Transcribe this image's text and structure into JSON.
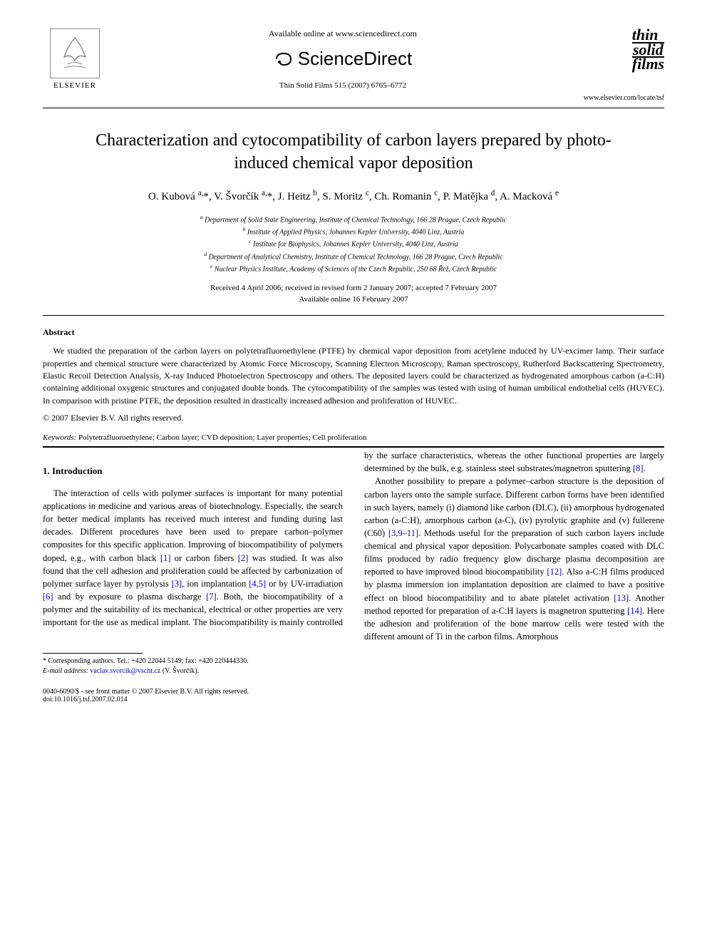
{
  "header": {
    "available_online": "Available online at www.sciencedirect.com",
    "sciencedirect": "ScienceDirect",
    "journal_ref": "Thin Solid Films 515 (2007) 6765–6772",
    "elsevier_label": "ELSEVIER",
    "tsf_line1": "thin",
    "tsf_line2": "solid",
    "tsf_line3": "films",
    "tsf_url": "www.elsevier.com/locate/tsf"
  },
  "title": "Characterization and cytocompatibility of carbon layers prepared by photo-induced chemical vapor deposition",
  "authors_html": "O. Kubová <sup>a,</sup>*, V. Švorčík <sup>a,</sup>*, J. Heitz <sup>b</sup>, S. Moritz <sup>c</sup>, Ch. Romanin <sup>c</sup>, P. Matějka <sup>d</sup>, A. Macková <sup>e</sup>",
  "affiliations": {
    "a": "Department of Solid State Engineering, Institute of Chemical Technology, 166 28 Prague, Czech Republic",
    "b": "Institute of Applied Physics, Johannes Kepler University, 4040 Linz, Austria",
    "c": "Institute for Biophysics, Johannes Kepler University, 4040 Linz, Austria",
    "d": "Department of Analytical Chemistry, Institute of Chemical Technology, 166 28 Prague, Czech Republic",
    "e": "Nuclear Physics Institute, Academy of Sciences of the Czech Republic, 250 68 Řež, Czech Republic"
  },
  "dates": {
    "line1": "Received 4 April 2006; received in revised form 2 January 2007; accepted 7 February 2007",
    "line2": "Available online 16 February 2007"
  },
  "abstract": {
    "heading": "Abstract",
    "body": "We studied the preparation of the carbon layers on polytetrafluoroethylene (PTFE) by chemical vapor deposition from acetylene induced by UV-excimer lamp. Their surface properties and chemical structure were characterized by Atomic Force Microscopy, Scanning Electron Microscopy, Raman spectroscopy, Rutherford Backscattering Spectrometry, Elastic Recoil Detection Analysis, X-ray Induced Photoelectron Spectroscopy and others. The deposited layers could be characterized as hydrogenated amorphous carbon (a-C:H) containing additional oxygenic structures and conjugated double bonds. The cytocompatibility of the samples was tested with using of human umbilical endothelial cells (HUVEC). In comparison with pristine PTFE, the deposition resulted in drastically increased adhesion and proliferation of HUVEC.",
    "copyright": "© 2007 Elsevier B.V. All rights reserved."
  },
  "keywords": {
    "label": "Keywords:",
    "text": "Polytetrafluoroethylene; Carbon layer; CVD deposition; Layer properties; Cell proliferation"
  },
  "intro": {
    "heading": "1. Introduction",
    "p1_a": "The interaction of cells with polymer surfaces is important for many potential applications in medicine and various areas of biotechnology. Especially, the search for better medical implants has received much interest and funding during last decades. Different procedures have been used to prepare carbon–polymer composites for this specific application. Improving of biocompatibility of polymers doped, e.g., with carbon black ",
    "r1": "[1]",
    "p1_b": " or carbon fibers ",
    "r2": "[2]",
    "p1_c": " was studied. It was also found that the cell adhesion and proliferation could be affected by carbonization of polymer surface layer by pyrolysis ",
    "r3": "[3]",
    "p1_d": ", ion implantation ",
    "r45": "[4,5]",
    "p1_e": " or by UV-irradiation ",
    "r6": "[6]",
    "p1_f": " and by exposure to plasma discharge ",
    "r7": "[7]",
    "p1_g": ". Both, the biocompatibility of a polymer and the suitability of its mechanical, electrical or other properties are very important for the use as medical implant. The biocompatibility is mainly controlled by the surface characteristics, whereas the other functional properties are largely determined by the bulk, e.g. stainless steel substrates/magnetron sputtering ",
    "r8": "[8]",
    "p1_h": ".",
    "p2_a": "Another possibility to prepare a polymer–carbon structure is the deposition of carbon layers onto the sample surface. Different carbon forms have been identified in such layers, namely (i) diamond like carbon (DLC), (ii) amorphous hydrogenated carbon (a-C:H), amorphous carbon (a-C), (iv) pyrolytic graphite and (v) fullerene (C60) ",
    "r3911": "[3,9–11]",
    "p2_b": ". Methods useful for the preparation of such carbon layers include chemical and physical vapor deposition. Polycarbonate samples coated with DLC films produced by radio frequency glow discharge plasma decomposition are reported to have improved blood biocompatibility ",
    "r12": "[12]",
    "p2_c": ". Also a-C:H films produced by plasma immersion ion implantation deposition are claimed to have a positive effect on blood biocompatibility and to abate platelet activation ",
    "r13": "[13]",
    "p2_d": ". Another method reported for preparation of a-C:H layers is magnetron sputtering ",
    "r14": "[14]",
    "p2_e": ". Here the adhesion and proliferation of the bone marrow cells were tested with the different amount of Ti in the carbon films. Amorphous"
  },
  "footnote": {
    "line1": "* Corresponding authors. Tel.: +420 22044 5149; fax: +420 220444330.",
    "line2_label": "E-mail address:",
    "line2_email": "vaclav.svorcik@vscht.cz",
    "line2_tail": " (V. Švorčík)."
  },
  "footer": {
    "left1": "0040-6090/$ - see front matter © 2007 Elsevier B.V. All rights reserved.",
    "left2": "doi:10.1016/j.tsf.2007.02.014"
  },
  "colors": {
    "link": "#0000cc",
    "text": "#000000",
    "bg": "#ffffff"
  }
}
